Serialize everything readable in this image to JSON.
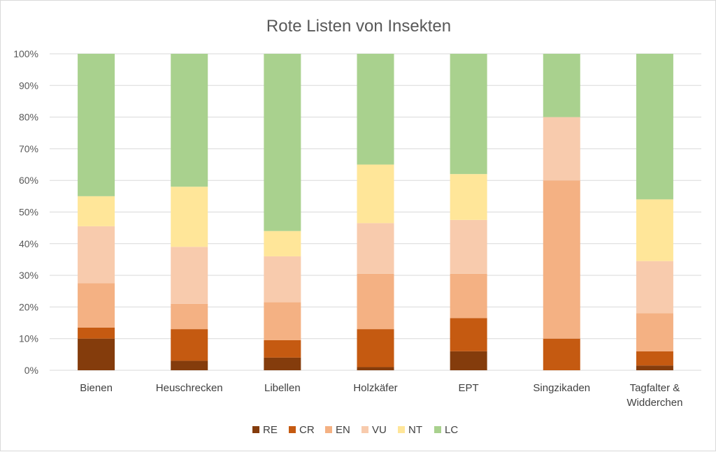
{
  "chart_data": {
    "type": "bar",
    "stacked": true,
    "title": "Rote Listen von Insekten",
    "categories": [
      "Bienen",
      "Heuschrecken",
      "Libellen",
      "Holzkäfer",
      "EPT",
      "Singzikaden",
      "Tagfalter & Widderchen"
    ],
    "y_ticks": [
      "0%",
      "10%",
      "20%",
      "30%",
      "40%",
      "50%",
      "60%",
      "70%",
      "80%",
      "90%",
      "100%"
    ],
    "ylim": [
      0,
      100
    ],
    "grid": true,
    "legend_position": "bottom",
    "series": [
      {
        "name": "RE",
        "color": "#843c0c",
        "values": [
          10,
          3,
          4,
          1,
          6,
          0,
          1.5
        ]
      },
      {
        "name": "CR",
        "color": "#c55a11",
        "values": [
          3.5,
          10,
          5.5,
          12,
          10.5,
          10,
          4.5
        ]
      },
      {
        "name": "EN",
        "color": "#f4b183",
        "values": [
          14,
          8,
          12,
          17.5,
          14,
          50,
          12
        ]
      },
      {
        "name": "VU",
        "color": "#f8cbad",
        "values": [
          18,
          18,
          14.5,
          16,
          17,
          20,
          16.5
        ]
      },
      {
        "name": "NT",
        "color": "#ffe699",
        "values": [
          9.5,
          19,
          8,
          18.5,
          14.5,
          0,
          19.5
        ]
      },
      {
        "name": "LC",
        "color": "#a9d18e",
        "values": [
          45,
          42,
          56,
          35,
          38,
          20,
          46
        ]
      }
    ]
  }
}
